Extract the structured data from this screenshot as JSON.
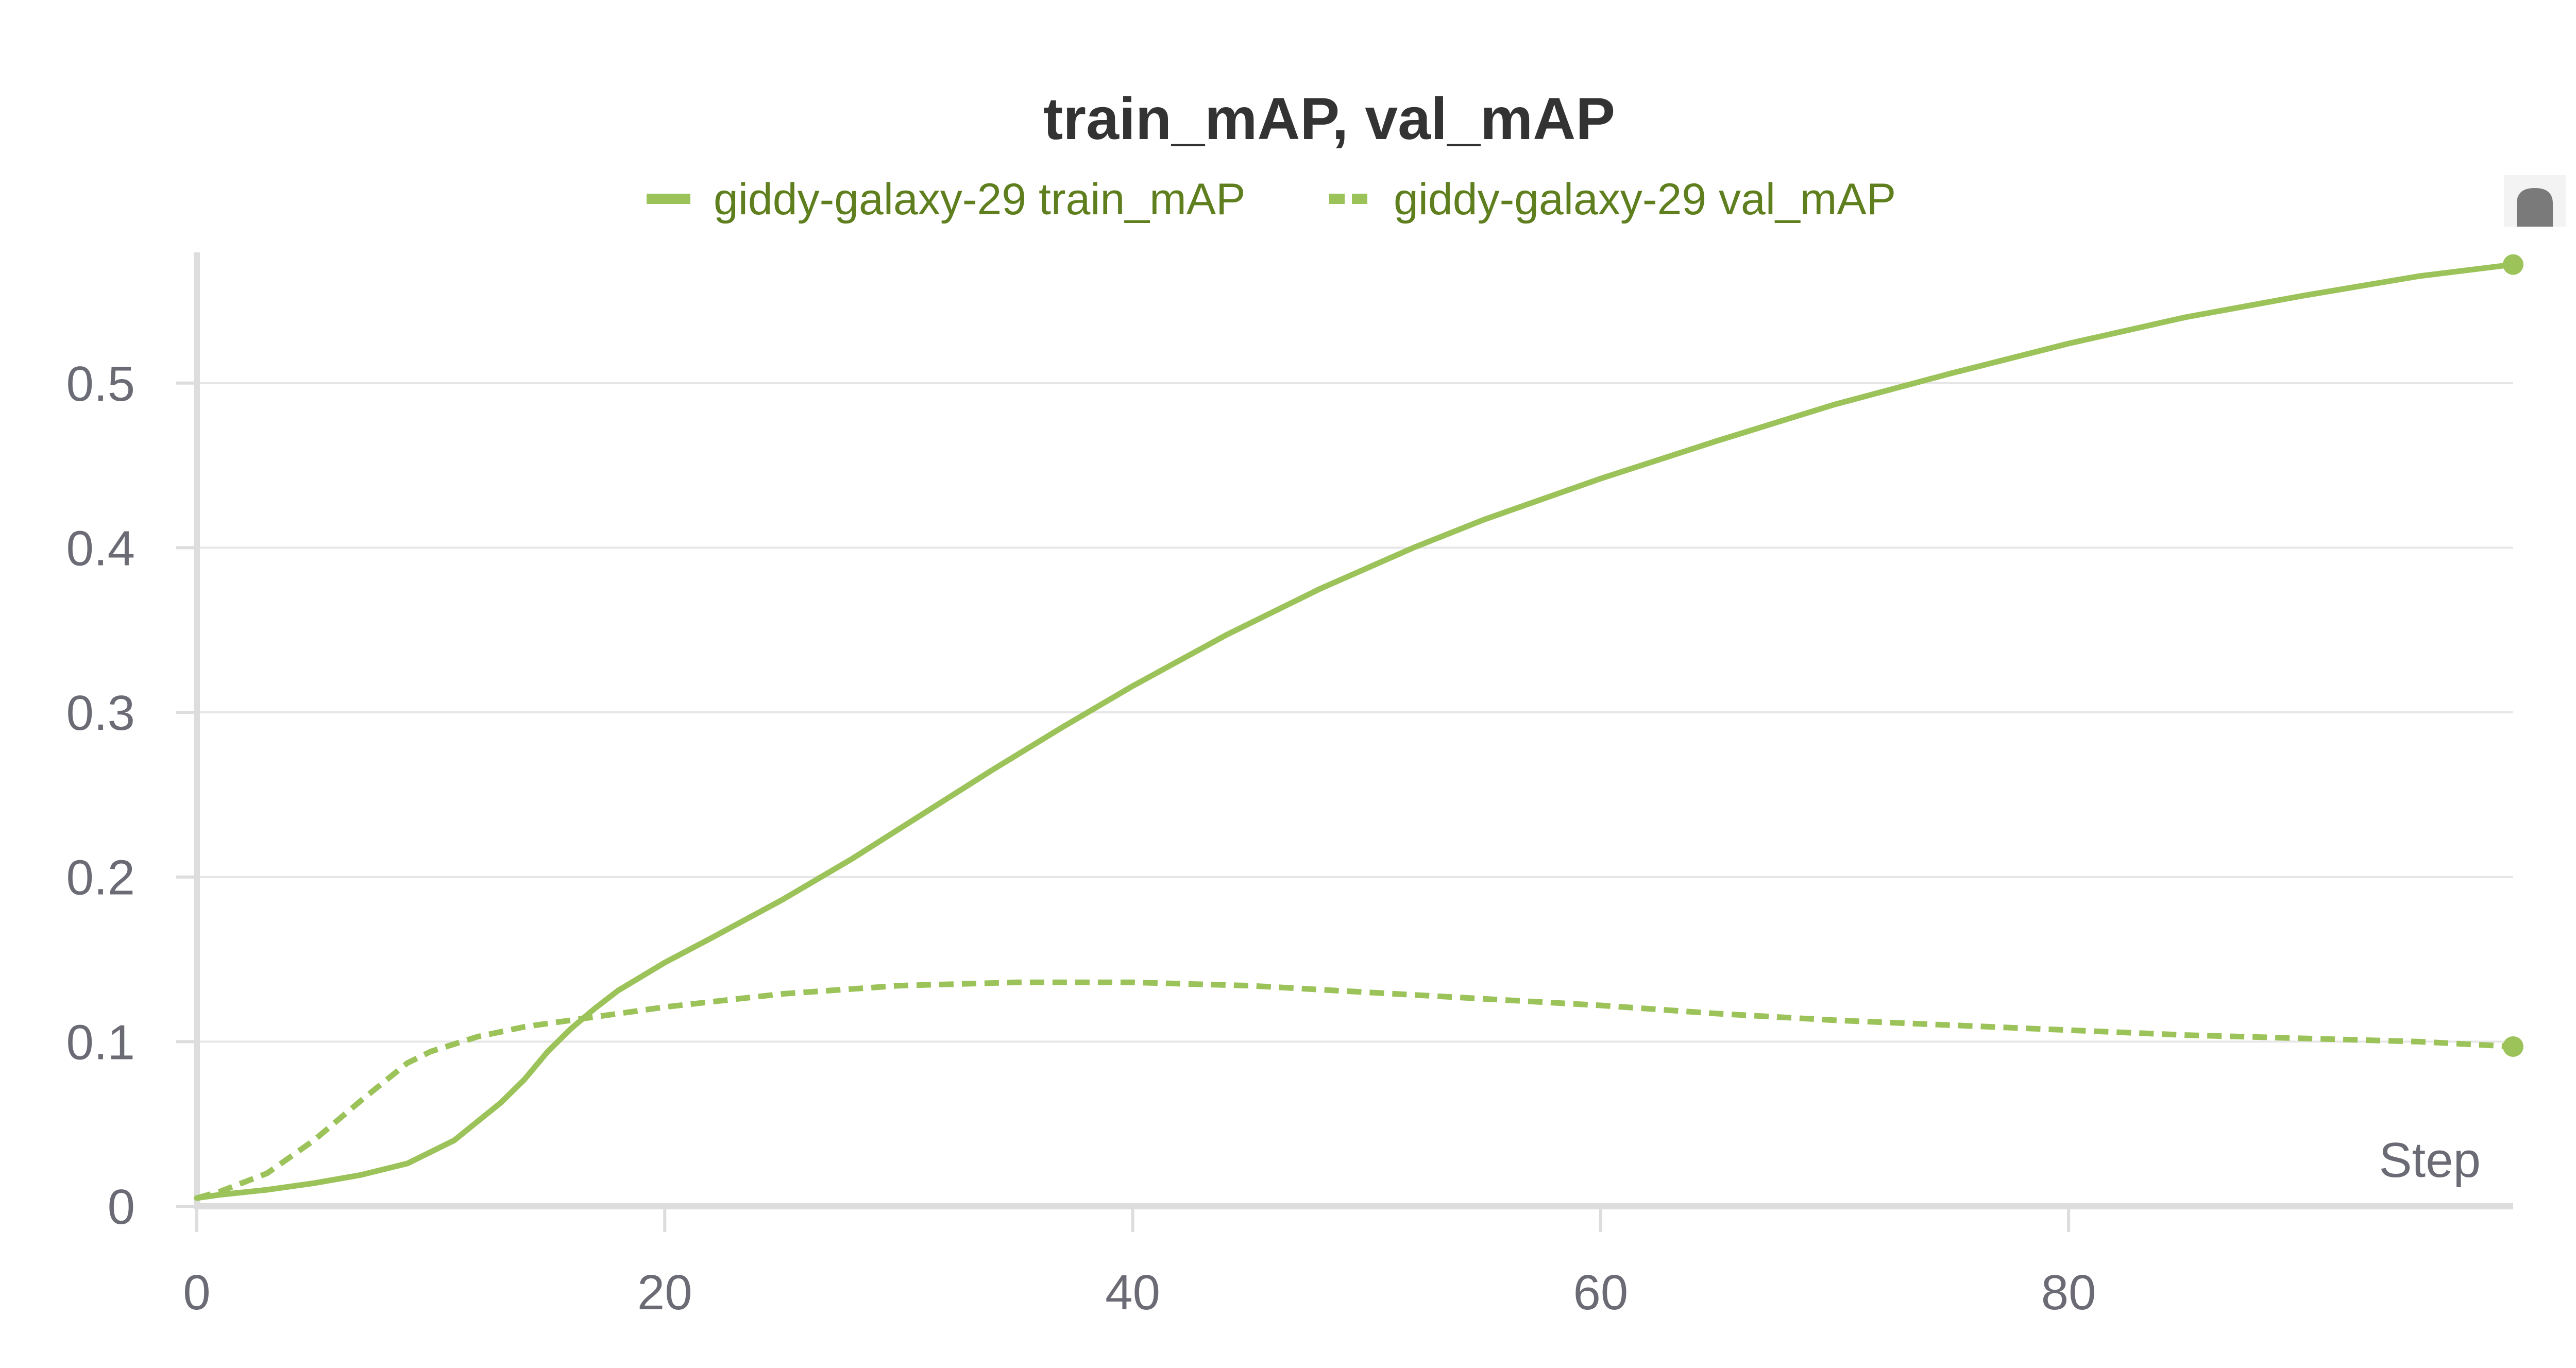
{
  "chart_data": {
    "type": "line",
    "title": "train_mAP, val_mAP",
    "xlabel": "Step",
    "ylabel": "",
    "xlim": [
      0,
      99
    ],
    "ylim": [
      0,
      0.57
    ],
    "x_ticks": [
      0,
      20,
      40,
      60,
      80
    ],
    "y_ticks": [
      0,
      0.1,
      0.2,
      0.3,
      0.4,
      0.5
    ],
    "x_tick_labels": [
      "0",
      "20",
      "40",
      "60",
      "80"
    ],
    "y_tick_labels": [
      "0",
      "0.1",
      "0.2",
      "0.3",
      "0.4",
      "0.5"
    ],
    "grid": "horizontal",
    "legend_position": "top-center",
    "color": "#9cc35a",
    "series": [
      {
        "name": "giddy-galaxy-29 train_mAP",
        "style": "solid",
        "x": [
          0,
          1,
          3,
          5,
          7,
          9,
          11,
          13,
          14,
          15,
          16,
          17,
          18,
          20,
          22,
          25,
          28,
          31,
          34,
          37,
          40,
          44,
          48,
          52,
          55,
          60,
          65,
          70,
          75,
          80,
          85,
          90,
          95,
          99
        ],
        "y": [
          0.005,
          0.007,
          0.01,
          0.014,
          0.019,
          0.026,
          0.04,
          0.063,
          0.077,
          0.094,
          0.108,
          0.12,
          0.131,
          0.148,
          0.163,
          0.186,
          0.211,
          0.238,
          0.265,
          0.291,
          0.316,
          0.347,
          0.375,
          0.4,
          0.417,
          0.442,
          0.465,
          0.487,
          0.506,
          0.524,
          0.54,
          0.553,
          0.565,
          0.572
        ]
      },
      {
        "name": "giddy-galaxy-29 val_mAP",
        "style": "dashed",
        "x": [
          0,
          1,
          3,
          5,
          7,
          9,
          10,
          12,
          14,
          17,
          20,
          25,
          30,
          35,
          40,
          45,
          50,
          55,
          60,
          65,
          70,
          75,
          80,
          85,
          90,
          95,
          99
        ],
        "y": [
          0.005,
          0.009,
          0.02,
          0.04,
          0.064,
          0.087,
          0.094,
          0.103,
          0.109,
          0.115,
          0.121,
          0.129,
          0.134,
          0.136,
          0.136,
          0.134,
          0.13,
          0.126,
          0.122,
          0.117,
          0.113,
          0.11,
          0.107,
          0.104,
          0.102,
          0.1,
          0.097
        ]
      }
    ]
  }
}
